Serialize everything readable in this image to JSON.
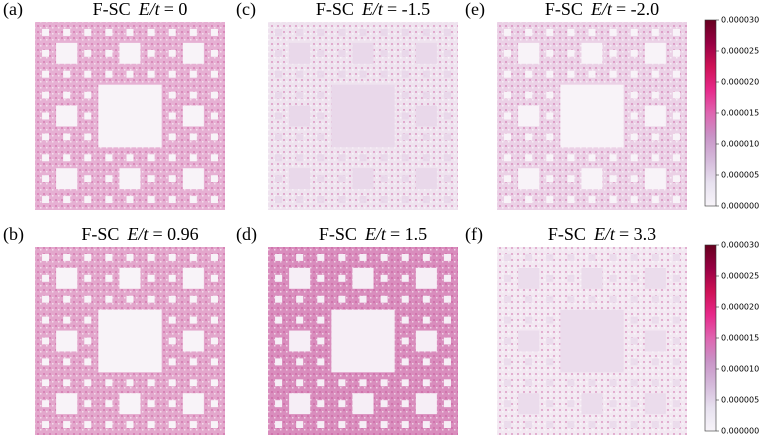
{
  "chart_data": [
    {
      "type": "heatmap",
      "label": "(a)",
      "title": "F-SC",
      "title_variable": "E/t",
      "title_value": "= 0",
      "color": "#e6b0d3",
      "hole_color": "#f8f3f8"
    },
    {
      "type": "heatmap",
      "label": "(c)",
      "title": "F-SC",
      "title_variable": "E/t",
      "title_value": "= -1.5",
      "color": "#efe3ef",
      "hole_color": "#e9d8ea"
    },
    {
      "type": "heatmap",
      "label": "(e)",
      "title": "F-SC",
      "title_variable": "E/t",
      "title_value": "= -2.0",
      "color": "#ebd1e6",
      "hole_color": "#f8f3f8",
      "colorbar": {
        "ylim": [
          0,
          3e-05
        ],
        "colors": [
          "#f7f4f9",
          "#e7e1ef",
          "#d4b9da",
          "#c994c7",
          "#df65b0",
          "#e7298a",
          "#ce1256",
          "#980043",
          "#67001f"
        ],
        "yticks": [
          {
            "value": 0,
            "label": "0.000000"
          },
          {
            "value": 5e-06,
            "label": "0.000005"
          },
          {
            "value": 1e-05,
            "label": "0.000010"
          },
          {
            "value": 1.5e-05,
            "label": "0.000015"
          },
          {
            "value": 2e-05,
            "label": "0.000020"
          },
          {
            "value": 2.5e-05,
            "label": "0.000025"
          },
          {
            "value": 3e-05,
            "label": "0.000030"
          }
        ]
      }
    },
    {
      "type": "heatmap",
      "label": "(b)",
      "title": "F-SC",
      "title_variable": "E/t",
      "title_value": "= 0.96",
      "color": "#e3a7cc",
      "hole_color": "#f8f3f8"
    },
    {
      "type": "heatmap",
      "label": "(d)",
      "title": "F-SC",
      "title_variable": "E/t",
      "title_value": "= 1.5",
      "color": "#d98dbd",
      "hole_color": "#f6eef6"
    },
    {
      "type": "heatmap",
      "label": "(f)",
      "title": "F-SC",
      "title_variable": "E/t",
      "title_value": "= 3.3",
      "color": "#f3e8f2",
      "hole_color": "#ebdcec",
      "colorbar": {
        "ylim": [
          0,
          3e-05
        ],
        "colors": [
          "#f7f4f9",
          "#e7e1ef",
          "#d4b9da",
          "#c994c7",
          "#df65b0",
          "#e7298a",
          "#ce1256",
          "#980043",
          "#67001f"
        ],
        "yticks": [
          {
            "value": 0,
            "label": "0.000000"
          },
          {
            "value": 5e-06,
            "label": "0.000005"
          },
          {
            "value": 1e-05,
            "label": "0.000010"
          },
          {
            "value": 1.5e-05,
            "label": "0.000015"
          },
          {
            "value": 2e-05,
            "label": "0.000020"
          },
          {
            "value": 2.5e-05,
            "label": "0.000025"
          },
          {
            "value": 3e-05,
            "label": "0.000030"
          }
        ]
      }
    }
  ]
}
